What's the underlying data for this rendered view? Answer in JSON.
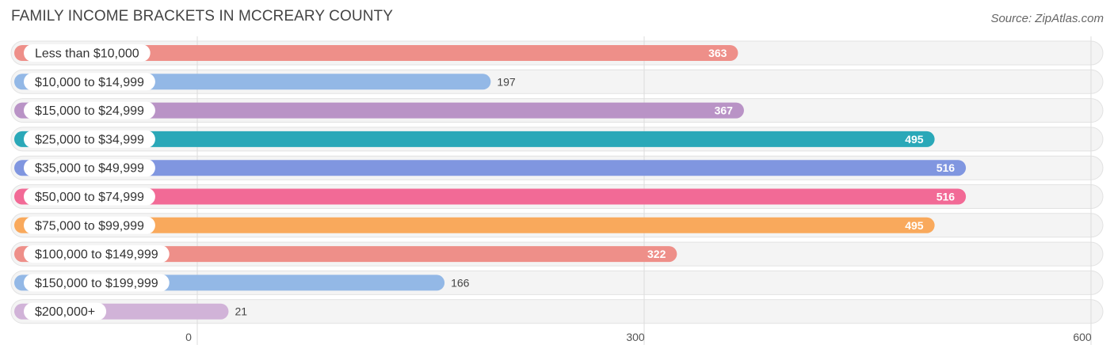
{
  "header": {
    "title": "FAMILY INCOME BRACKETS IN MCCREARY COUNTY",
    "source": "Source: ZipAtlas.com"
  },
  "chart_data": {
    "type": "bar",
    "orientation": "horizontal",
    "title": "FAMILY INCOME BRACKETS IN MCCREARY COUNTY",
    "xlabel": "",
    "ylabel": "",
    "xlim": [
      0,
      600
    ],
    "xticks": [
      0,
      300,
      600
    ],
    "grid": true,
    "categories": [
      "Less than $10,000",
      "$10,000 to $14,999",
      "$15,000 to $24,999",
      "$25,000 to $34,999",
      "$35,000 to $49,999",
      "$50,000 to $74,999",
      "$75,000 to $99,999",
      "$100,000 to $149,999",
      "$150,000 to $199,999",
      "$200,000+"
    ],
    "values": [
      363,
      197,
      367,
      495,
      516,
      516,
      495,
      322,
      166,
      21
    ],
    "colors": [
      "#ee8f89",
      "#93b8e6",
      "#b993c6",
      "#2aa8b8",
      "#8096e0",
      "#f26a96",
      "#f9a95c",
      "#ee8f89",
      "#93b8e6",
      "#d1b3d8"
    ]
  }
}
